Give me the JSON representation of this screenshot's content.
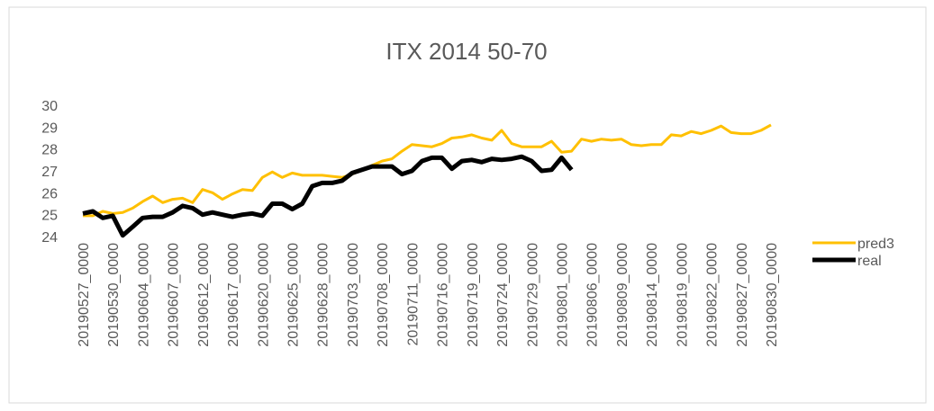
{
  "chart_data": {
    "type": "line",
    "title": "ITX 2014 50-70",
    "categories": [
      "20190527_0000",
      null,
      null,
      "20190530_0000",
      null,
      null,
      "20190604_0000",
      null,
      null,
      "20190607_0000",
      null,
      null,
      "20190612_0000",
      null,
      null,
      "20190617_0000",
      null,
      null,
      "20190620_0000",
      null,
      null,
      "20190625_0000",
      null,
      null,
      "20190628_0000",
      null,
      null,
      "20190703_0000",
      null,
      null,
      "20190708_0000",
      null,
      null,
      "20190711_0000",
      null,
      null,
      "20190716_0000",
      null,
      null,
      "20190719_0000",
      null,
      null,
      "20190724_0000",
      null,
      null,
      "20190729_0000",
      null,
      null,
      "20190801_0000",
      null,
      null,
      "20190806_0000",
      null,
      null,
      "20190809_0000",
      null,
      null,
      "20190814_0000",
      null,
      null,
      "20190819_0000",
      null,
      null,
      "20190822_0000",
      null,
      null,
      "20190827_0000",
      null,
      null,
      "20190830_0000"
    ],
    "series": [
      {
        "name": "pred3",
        "color": "#ffc000",
        "values": [
          24.95,
          24.95,
          25.15,
          25.05,
          25.1,
          25.3,
          25.6,
          25.85,
          25.55,
          25.7,
          25.75,
          25.55,
          26.15,
          26.0,
          25.7,
          25.95,
          26.15,
          26.1,
          26.7,
          26.95,
          26.7,
          26.9,
          26.8,
          26.8,
          26.8,
          26.75,
          26.7,
          26.85,
          27.05,
          27.25,
          27.45,
          27.55,
          27.9,
          28.2,
          28.15,
          28.1,
          28.25,
          28.5,
          28.55,
          28.65,
          28.5,
          28.4,
          28.85,
          28.25,
          28.1,
          28.1,
          28.1,
          28.35,
          27.85,
          27.9,
          28.45,
          28.35,
          28.45,
          28.4,
          28.45,
          28.2,
          28.15,
          28.2,
          28.2,
          28.65,
          28.6,
          28.8,
          28.7,
          28.85,
          29.05,
          28.75,
          28.7,
          28.7,
          28.85,
          29.1
        ]
      },
      {
        "name": "real",
        "color": "#000000",
        "values": [
          25.05,
          25.15,
          24.85,
          24.95,
          24.05,
          24.45,
          24.85,
          24.9,
          24.9,
          25.1,
          25.4,
          25.3,
          25.0,
          25.1,
          25.0,
          24.9,
          25.0,
          25.05,
          24.95,
          25.5,
          25.5,
          25.25,
          25.5,
          26.3,
          26.45,
          26.45,
          26.55,
          26.9,
          27.05,
          27.2,
          27.2,
          27.2,
          26.85,
          27.0,
          27.45,
          27.6,
          27.6,
          27.1,
          27.45,
          27.5,
          27.4,
          27.55,
          27.5,
          27.55,
          27.65,
          27.45,
          27.0,
          27.05,
          27.6,
          27.05,
          null,
          null,
          null,
          null,
          null,
          null,
          null,
          null,
          null,
          null,
          null,
          null,
          null,
          null,
          null,
          null,
          null,
          null,
          null,
          null
        ]
      }
    ],
    "ylim": [
      24,
      30
    ],
    "yticks": [
      24,
      25,
      26,
      27,
      28,
      29,
      30
    ],
    "legend": "right"
  }
}
